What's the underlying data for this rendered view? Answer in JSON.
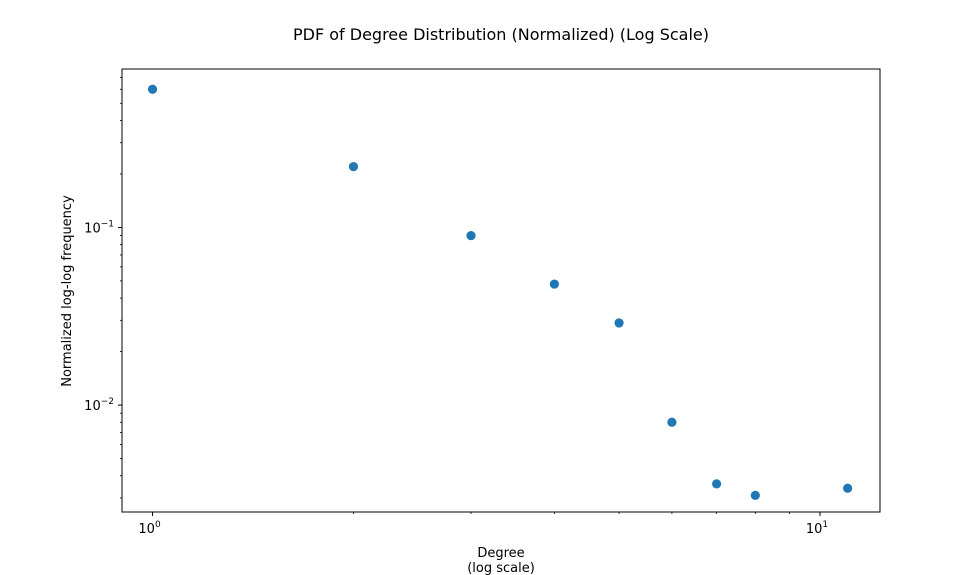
{
  "chart_data": {
    "type": "scatter",
    "title": "PDF of Degree Distribution (Normalized) (Log Scale)",
    "xlabel_line1": "Degree",
    "xlabel_line2": "(log scale)",
    "ylabel": "Normalized log-log frequency",
    "x_scale": "log",
    "y_scale": "log",
    "xlim": [
      0.9,
      12.3
    ],
    "ylim": [
      0.0025,
      0.78
    ],
    "grid": false,
    "legend": "none",
    "marker_color": "#1f77b4",
    "x_major_ticks": [
      {
        "value": 1,
        "base": "10",
        "exp": "0"
      },
      {
        "value": 10,
        "base": "10",
        "exp": "1"
      }
    ],
    "y_major_ticks": [
      {
        "value": 0.1,
        "base": "10",
        "exp": "−1"
      },
      {
        "value": 0.01,
        "base": "10",
        "exp": "−2"
      }
    ],
    "x_minor_ticks": [
      2,
      3,
      4,
      5,
      6,
      7,
      8,
      9
    ],
    "y_minor_ticks": [
      0.003,
      0.004,
      0.005,
      0.006,
      0.007,
      0.008,
      0.009,
      0.02,
      0.03,
      0.04,
      0.05,
      0.06,
      0.07,
      0.08,
      0.09,
      0.2,
      0.3,
      0.4,
      0.5,
      0.6,
      0.7
    ],
    "points": [
      {
        "x": 1,
        "y": 0.6
      },
      {
        "x": 2,
        "y": 0.22
      },
      {
        "x": 3,
        "y": 0.09
      },
      {
        "x": 4,
        "y": 0.048
      },
      {
        "x": 5,
        "y": 0.029
      },
      {
        "x": 6,
        "y": 0.008
      },
      {
        "x": 7,
        "y": 0.0036
      },
      {
        "x": 8,
        "y": 0.0031
      },
      {
        "x": 11,
        "y": 0.0034
      }
    ]
  }
}
